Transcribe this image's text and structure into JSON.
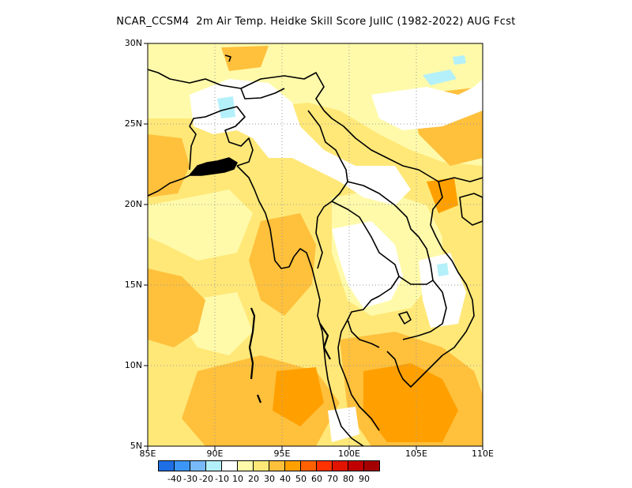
{
  "title": "NCAR_CCSM4  2m Air Temp. Heidke Skill Score JulIC (1982-2022) AUG Fcst",
  "map": {
    "lat_labels": [
      "30N",
      "25N",
      "20N",
      "15N",
      "10N",
      "5N"
    ],
    "lon_labels": [
      "85E",
      "90E",
      "95E",
      "100E",
      "105E",
      "110E"
    ],
    "lat_range": [
      5,
      30
    ],
    "lon_range": [
      85,
      110
    ],
    "grid": "dotted",
    "land_outline_color": "#000000"
  },
  "legend": {
    "labels": [
      "-40",
      "-30",
      "-20",
      "-10",
      "10",
      "20",
      "30",
      "40",
      "50",
      "60",
      "70",
      "80",
      "90"
    ],
    "colors": [
      "#1e6fe6",
      "#3c96f5",
      "#78b9fa",
      "#b4f0fa",
      "#ffffff",
      "#fffaaa",
      "#ffe878",
      "#ffc03c",
      "#ffa000",
      "#ff6000",
      "#ff3200",
      "#e11400",
      "#c00000",
      "#a50000"
    ]
  }
}
